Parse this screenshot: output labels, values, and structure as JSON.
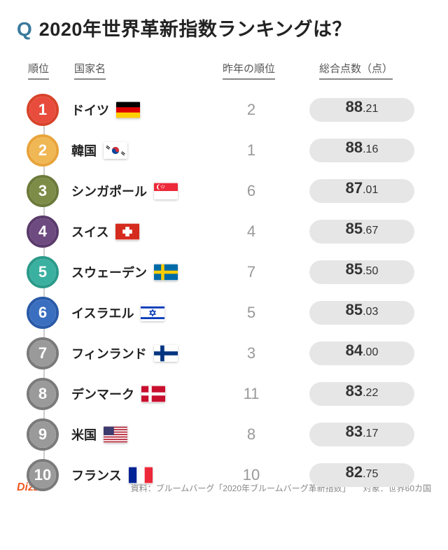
{
  "title": {
    "q_mark": "Q",
    "q_color": "#3a7a9c",
    "text": "2020年世界革新指数ランキングは？",
    "text_color": "#222222",
    "fontsize": 27
  },
  "headers": {
    "rank": "順位",
    "name": "国家名",
    "prev": "昨年の順位",
    "score": "総合点数（点）",
    "underline_color": "#888888",
    "fontsize": 15
  },
  "badge_style": {
    "outer_size": 46,
    "inner_size": 38,
    "ring_width": 4,
    "font_size": 22
  },
  "score_pill": {
    "bg": "#e6e6e6",
    "radius": 20,
    "int_fontsize": 22,
    "dec_fontsize": 16
  },
  "connector_color": "#cccccc",
  "rows": [
    {
      "rank": "1",
      "ring": "#d8432a",
      "fill": "#e84c3d",
      "name": "ドイツ",
      "flag": "de",
      "prev": "2",
      "int": "88",
      "dec": ".21"
    },
    {
      "rank": "2",
      "ring": "#e8a33a",
      "fill": "#f0b755",
      "name": "韓国",
      "flag": "kr",
      "prev": "1",
      "int": "88",
      "dec": ".16"
    },
    {
      "rank": "3",
      "ring": "#6b7a3a",
      "fill": "#7d8c47",
      "name": "シンガポール",
      "flag": "sg",
      "prev": "6",
      "int": "87",
      "dec": ".01"
    },
    {
      "rank": "4",
      "ring": "#5a3a6b",
      "fill": "#6d4a80",
      "name": "スイス",
      "flag": "ch",
      "prev": "4",
      "int": "85",
      "dec": ".67"
    },
    {
      "rank": "5",
      "ring": "#2a9a8a",
      "fill": "#3ab0a0",
      "name": "スウェーデン",
      "flag": "se",
      "prev": "7",
      "int": "85",
      "dec": ".50"
    },
    {
      "rank": "6",
      "ring": "#2a5aa8",
      "fill": "#3a6fc0",
      "name": "イスラエル",
      "flag": "il",
      "prev": "5",
      "int": "85",
      "dec": ".03"
    },
    {
      "rank": "7",
      "ring": "#7a7a7a",
      "fill": "#9a9a9a",
      "name": "フィンランド",
      "flag": "fi",
      "prev": "3",
      "int": "84",
      "dec": ".00"
    },
    {
      "rank": "8",
      "ring": "#7a7a7a",
      "fill": "#9a9a9a",
      "name": "デンマーク",
      "flag": "dk",
      "prev": "11",
      "int": "83",
      "dec": ".22"
    },
    {
      "rank": "9",
      "ring": "#7a7a7a",
      "fill": "#9a9a9a",
      "name": "米国",
      "flag": "us",
      "prev": "8",
      "int": "83",
      "dec": ".17"
    },
    {
      "rank": "10",
      "ring": "#7a7a7a",
      "fill": "#9a9a9a",
      "name": "フランス",
      "flag": "fr",
      "prev": "10",
      "int": "82",
      "dec": ".75"
    }
  ],
  "footer": {
    "logo": "Dizzo",
    "logo_color": "#f15a22",
    "source": "資料：ブルームバーグ「2020年ブルームバーグ革新指数」",
    "scope": "対象：世界60カ国",
    "text_color": "#888888"
  }
}
